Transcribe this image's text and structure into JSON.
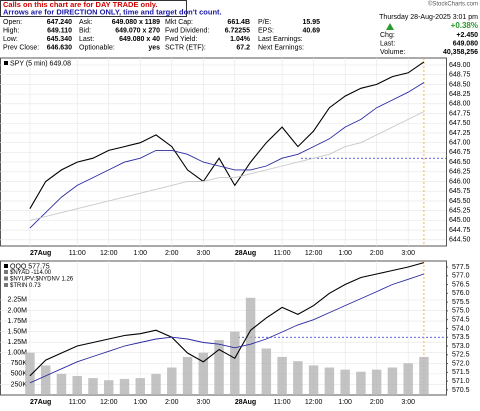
{
  "note": {
    "line1": "Calls on this chart are for DAY TRADE only.",
    "line2": "Arrows are for DIRECTION ONLY, time and target don't count."
  },
  "credit": "©StockCharts.com",
  "quote": {
    "rows": [
      [
        [
          "Open:",
          "647.240"
        ],
        [
          "Ask:",
          "649.080 x 1189"
        ],
        [
          "Mkt Cap:",
          "661.4B"
        ],
        [
          "P/E:",
          "15.95"
        ]
      ],
      [
        [
          "High:",
          "649.110"
        ],
        [
          "Bid:",
          "649.070 x 270"
        ],
        [
          "Fwd Dividend:",
          "6.72255"
        ],
        [
          "EPS:",
          "40.69"
        ]
      ],
      [
        [
          "Low:",
          "645.340"
        ],
        [
          "Last:",
          "649.080 x 40"
        ],
        [
          "Fwd Yield:",
          "1.04%"
        ],
        [
          "Last Earnings:",
          ""
        ]
      ],
      [
        [
          "Prev Close:",
          "646.630"
        ],
        [
          "Optionable:",
          "yes"
        ],
        [
          "SCTR (ETF):",
          "67.2"
        ],
        [
          "Next Earnings:",
          ""
        ]
      ]
    ]
  },
  "quote_right": {
    "date": "Thursday 28-Aug-2025  3:01 pm",
    "change_pct": "+0.38%",
    "rows": [
      [
        "Chg:",
        "+2.450"
      ],
      [
        "Last:",
        "649.080"
      ],
      [
        "Volume:",
        "40,358,256"
      ]
    ]
  },
  "chart_data": [
    {
      "type": "line",
      "legend": "SPY (5 min) 649.08",
      "x": [
        0,
        0.5,
        1,
        1.5,
        2,
        2.5,
        3,
        3.5,
        4,
        4.5,
        5,
        5.5,
        6,
        6.5,
        7,
        7.5,
        8,
        8.5,
        9,
        9.5,
        10,
        10.5,
        11,
        11.5,
        12,
        12.5
      ],
      "series": [
        {
          "color": "#000000",
          "values": [
            645.3,
            646.0,
            646.3,
            646.5,
            646.6,
            646.8,
            646.9,
            647.0,
            647.2,
            646.9,
            646.3,
            646.0,
            646.6,
            645.9,
            646.5,
            647.0,
            647.4,
            646.9,
            647.3,
            647.9,
            648.2,
            648.4,
            648.5,
            648.7,
            648.8,
            649.08
          ]
        },
        {
          "color": "#2a2aa0",
          "values": [
            644.8,
            645.2,
            645.6,
            645.9,
            646.1,
            646.3,
            646.5,
            646.6,
            646.8,
            646.8,
            646.7,
            646.5,
            646.4,
            646.3,
            646.3,
            646.4,
            646.6,
            646.7,
            646.9,
            647.1,
            647.4,
            647.6,
            647.9,
            648.1,
            648.3,
            648.55
          ]
        },
        {
          "color": "#c8c8c8",
          "values": [
            645.0,
            645.1,
            645.2,
            645.3,
            645.4,
            645.5,
            645.6,
            645.7,
            645.8,
            645.9,
            646.0,
            646.0,
            646.1,
            646.1,
            646.2,
            646.3,
            646.4,
            646.5,
            646.6,
            646.7,
            646.9,
            647.0,
            647.2,
            647.4,
            647.6,
            647.8
          ]
        }
      ],
      "xlim": [
        -0.95,
        13.2
      ],
      "xticks": [
        {
          "value": 0,
          "label": "27Aug"
        },
        {
          "value": 1.5,
          "label": "11:00"
        },
        {
          "value": 2.5,
          "label": "12:00"
        },
        {
          "value": 3.5,
          "label": "1:00"
        },
        {
          "value": 4.5,
          "label": "2:00"
        },
        {
          "value": 5.5,
          "label": "3:00"
        },
        {
          "value": 6.5,
          "label": "28Aug"
        },
        {
          "value": 8,
          "label": "11:00"
        },
        {
          "value": 9,
          "label": "12:00"
        },
        {
          "value": 10,
          "label": "1:00"
        },
        {
          "value": 11,
          "label": "2:00"
        },
        {
          "value": 12,
          "label": "3:00"
        }
      ],
      "ylim": [
        644.34,
        649.18
      ],
      "yticks": [
        {
          "value": 644.5,
          "label": "644.50"
        },
        {
          "value": 644.75,
          "label": "644.75"
        },
        {
          "value": 645,
          "label": "645.00"
        },
        {
          "value": 645.25,
          "label": "645.25"
        },
        {
          "value": 645.5,
          "label": "645.50"
        },
        {
          "value": 645.75,
          "label": "645.75"
        },
        {
          "value": 646,
          "label": "646.00"
        },
        {
          "value": 646.25,
          "label": "646.25"
        },
        {
          "value": 646.5,
          "label": "646.50"
        },
        {
          "value": 646.75,
          "label": "646.75"
        },
        {
          "value": 647,
          "label": "647.00"
        },
        {
          "value": 647.25,
          "label": "647.25"
        },
        {
          "value": 647.5,
          "label": "647.50"
        },
        {
          "value": 647.75,
          "label": "647.75"
        },
        {
          "value": 648,
          "label": "648.00"
        },
        {
          "value": 648.25,
          "label": "648.25"
        },
        {
          "value": 648.5,
          "label": "648.50"
        },
        {
          "value": 648.75,
          "label": "648.75"
        },
        {
          "value": 649,
          "label": "649.00"
        }
      ],
      "hline": {
        "y": 646.6,
        "x_from": 8.6
      },
      "vline": 12.5,
      "grid": true
    },
    {
      "type": "line",
      "legend": "QQQ 577.75",
      "legend_extra": [
        "$NYAD -114.00",
        "$NYUPV:$NYDNV 1.26",
        "$TRIN 0.73"
      ],
      "x": [
        0,
        0.5,
        1,
        1.5,
        2,
        2.5,
        3,
        3.5,
        4,
        4.5,
        5,
        5.5,
        6,
        6.5,
        7,
        7.5,
        8,
        8.5,
        9,
        9.5,
        10,
        10.5,
        11,
        11.5,
        12,
        12.5
      ],
      "series": [
        {
          "type": "bar",
          "color": "#b4b4b4",
          "values": [
            1000000,
            700000,
            500000,
            450000,
            400000,
            350000,
            380000,
            400000,
            500000,
            650000,
            900000,
            1000000,
            1300000,
            1500000,
            2300000,
            1100000,
            900000,
            800000,
            700000,
            650000,
            600000,
            550000,
            600000,
            650000,
            750000,
            900000
          ]
        },
        {
          "axis": "y2",
          "color": "#000000",
          "values": [
            571.3,
            572.2,
            572.6,
            573.0,
            573.2,
            573.4,
            573.6,
            573.7,
            573.9,
            573.5,
            572.6,
            572.1,
            572.8,
            572.3,
            573.9,
            574.6,
            575.2,
            574.8,
            575.3,
            576.0,
            576.5,
            576.9,
            577.1,
            577.3,
            577.5,
            577.75
          ]
        },
        {
          "axis": "y2",
          "color": "#2a2aa0",
          "values": [
            570.9,
            571.3,
            571.7,
            572.1,
            572.4,
            572.7,
            573.0,
            573.2,
            573.4,
            573.5,
            573.4,
            573.2,
            573.1,
            572.9,
            573.1,
            573.4,
            573.8,
            574.2,
            574.5,
            574.9,
            575.3,
            575.7,
            576.1,
            576.5,
            576.8,
            577.1
          ]
        }
      ],
      "xlim": [
        -0.95,
        13.2
      ],
      "xticks": [
        {
          "value": 0,
          "label": "27Aug"
        },
        {
          "value": 1.5,
          "label": "11:00"
        },
        {
          "value": 2.5,
          "label": "12:00"
        },
        {
          "value": 3.5,
          "label": "1:00"
        },
        {
          "value": 4.5,
          "label": "2:00"
        },
        {
          "value": 5.5,
          "label": "3:00"
        },
        {
          "value": 6.5,
          "label": "28Aug"
        },
        {
          "value": 8,
          "label": "11:00"
        },
        {
          "value": 9,
          "label": "12:00"
        },
        {
          "value": 10,
          "label": "1:00"
        },
        {
          "value": 11,
          "label": "2:00"
        },
        {
          "value": 12,
          "label": "3:00"
        }
      ],
      "ylim": [
        0,
        3170000
      ],
      "yticks": [
        {
          "value": 250000,
          "label": "250K"
        },
        {
          "value": 500000,
          "label": "500K"
        },
        {
          "value": 750000,
          "label": "750K"
        },
        {
          "value": 1000000,
          "label": "1.00M"
        },
        {
          "value": 1250000,
          "label": "1.25M"
        },
        {
          "value": 1500000,
          "label": "1.50M"
        },
        {
          "value": 1750000,
          "label": "1.75M"
        },
        {
          "value": 2000000,
          "label": "2.00M"
        },
        {
          "value": 2250000,
          "label": "2.25M"
        }
      ],
      "y2lim": [
        570.21,
        577.84
      ],
      "y2ticks": [
        570.5,
        {
          "value": 571,
          "label": "571.0"
        },
        571.5,
        {
          "value": 572,
          "label": "572.0"
        },
        572.5,
        {
          "value": 573,
          "label": "573.0"
        },
        573.5,
        {
          "value": 574,
          "label": "574.0"
        },
        574.5,
        {
          "value": 575,
          "label": "575.0"
        },
        575.5,
        {
          "value": 576,
          "label": "576.0"
        },
        576.5,
        {
          "value": 577,
          "label": "577.0"
        },
        577.5
      ],
      "hline": {
        "y": 573.5,
        "x_from": 6.6
      },
      "vline": 12.5,
      "grid": true
    }
  ]
}
